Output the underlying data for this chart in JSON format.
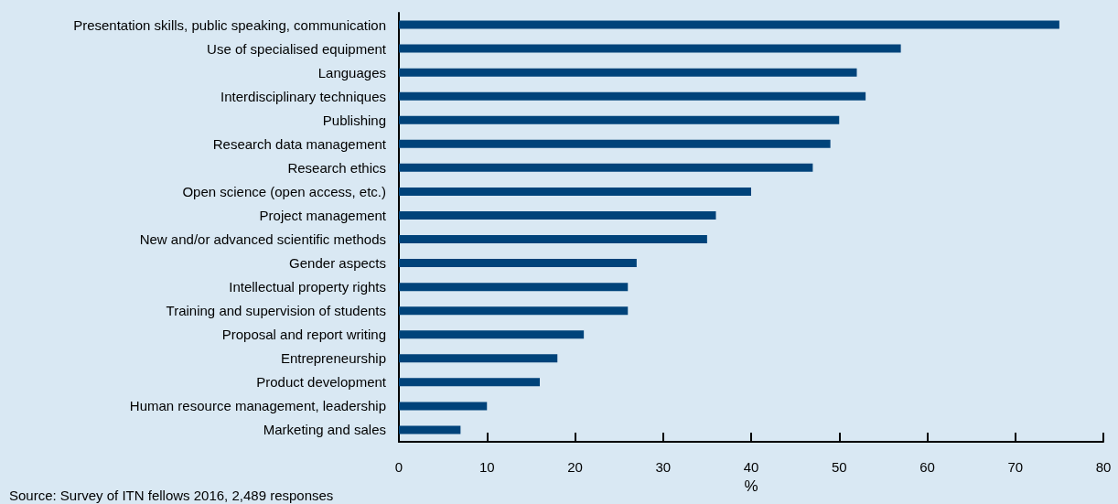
{
  "chart_data": {
    "type": "bar",
    "orientation": "horizontal",
    "categories": [
      "Presentation skills, public speaking, communication",
      "Use of specialised equipment",
      "Languages",
      "Interdisciplinary techniques",
      "Publishing",
      "Research data management",
      "Research ethics",
      "Open science (open access, etc.)",
      "Project management",
      "New and/or advanced scientific methods",
      "Gender aspects",
      "Intellectual property rights",
      "Training and supervision of students",
      "Proposal and report writing",
      "Entrepreneurship",
      "Product development",
      "Human resource management, leadership",
      "Marketing and sales"
    ],
    "values": [
      75,
      57,
      52,
      53,
      50,
      49,
      47,
      40,
      36,
      35,
      27,
      26,
      26,
      21,
      18,
      16,
      10,
      7
    ],
    "color": "#00437a",
    "xlim": [
      0,
      80
    ],
    "xticks": [
      0,
      10,
      20,
      30,
      40,
      50,
      60,
      70,
      80
    ],
    "xlabel": "%",
    "grid": false,
    "annotations": [
      "Source: Survey of ITN fellows 2016, 2,489 responses"
    ]
  }
}
